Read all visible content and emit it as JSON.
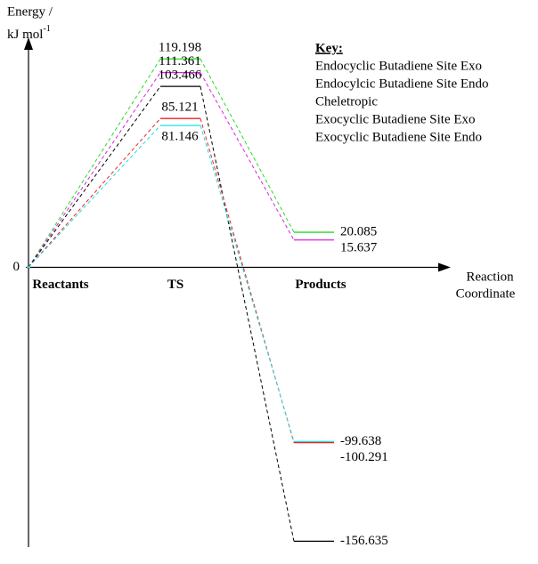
{
  "chart_data": {
    "type": "energy-profile",
    "y_label": {
      "line1": "Energy /",
      "unit": "kJ mol",
      "exponent": "-1"
    },
    "x_label": [
      "Reaction",
      "Coordinate"
    ],
    "legend_title": "Key:",
    "categories": [
      "Reactants",
      "TS",
      "Products"
    ],
    "series": [
      {
        "name": "Endocyclic Butadiene Site Exo",
        "color": "#22dd22",
        "values": [
          0,
          119.198,
          20.085
        ]
      },
      {
        "name": "Endocylcic Butadiene Site Endo",
        "color": "#dd22dd",
        "values": [
          0,
          111.361,
          15.637
        ]
      },
      {
        "name": "Cheletropic",
        "color": "#000000",
        "values": [
          0,
          103.466,
          -156.635
        ]
      },
      {
        "name": "Exocyclic Butadiene Site Exo",
        "color": "#ee2222",
        "values": [
          0,
          85.121,
          -100.291
        ]
      },
      {
        "name": "Exocyclic Butadiene Site Endo",
        "color": "#22dddd",
        "values": [
          0,
          81.146,
          -99.638
        ]
      }
    ],
    "ylim": [
      -160,
      130
    ],
    "yticks": [
      0
    ]
  }
}
